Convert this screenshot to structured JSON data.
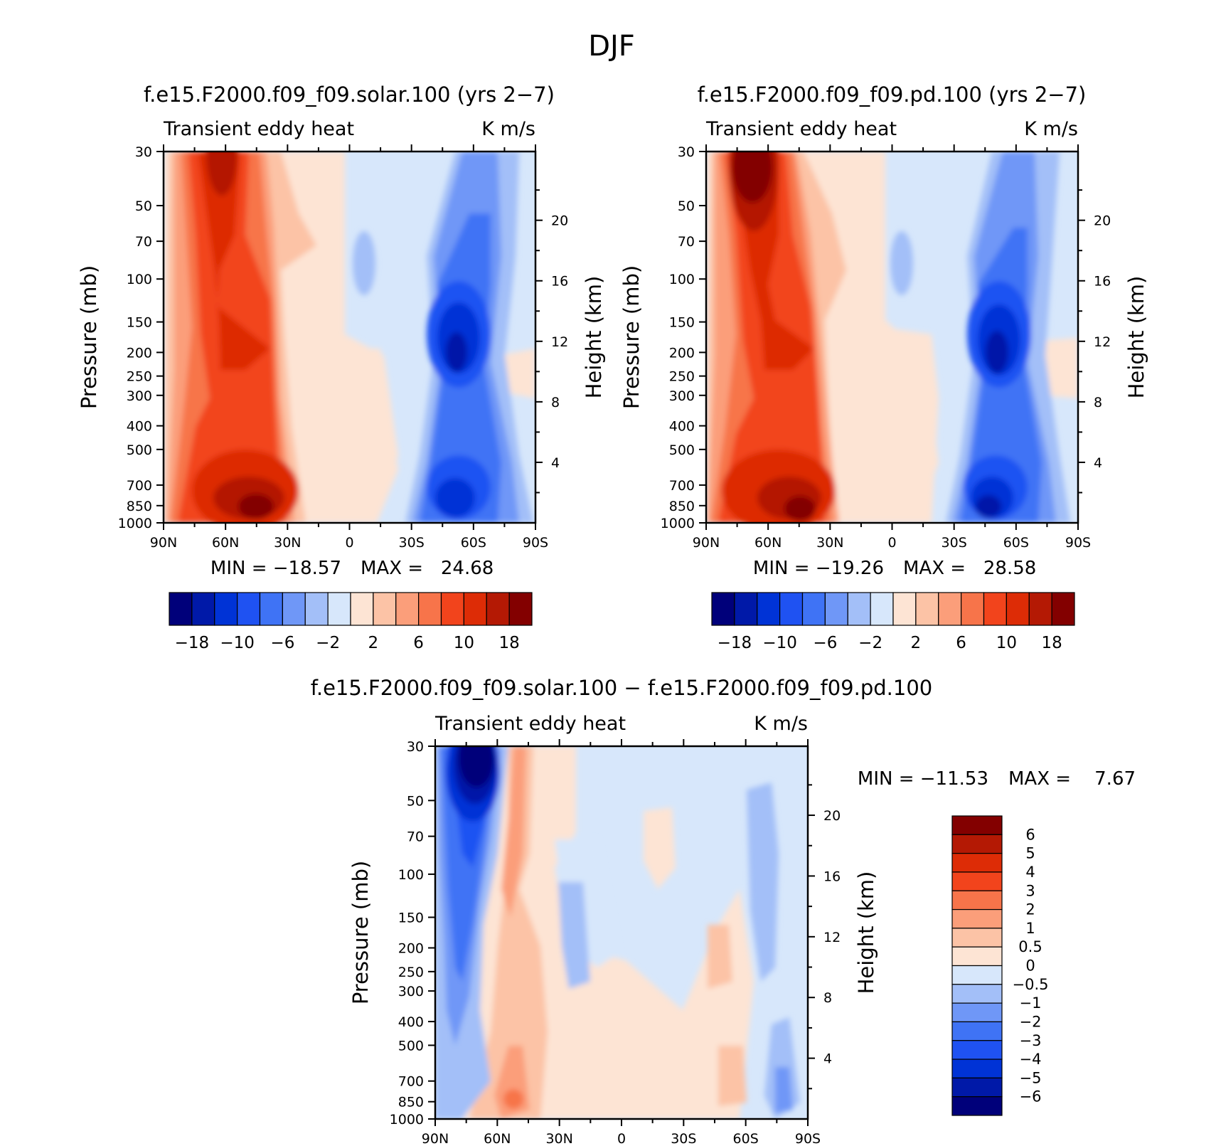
{
  "figure": {
    "title": "DJF",
    "domain": "Chart"
  },
  "colors": {
    "abs_scale": [
      "#00007a",
      "#0019a8",
      "#0033d6",
      "#1f52f2",
      "#3f73f5",
      "#6f97f7",
      "#a3bff8",
      "#d7e7fb",
      "#fde4d4",
      "#fcc3a6",
      "#fb9e7a",
      "#f7744a",
      "#f2441c",
      "#dd2c06",
      "#b41904",
      "#830000"
    ],
    "diff_scale": [
      "#00007a",
      "#0019a8",
      "#0033d6",
      "#1f52f2",
      "#3f73f5",
      "#6f97f7",
      "#a3bff8",
      "#d7e7fb",
      "#fde4d4",
      "#fcc3a6",
      "#fb9e7a",
      "#f7744a",
      "#f2441c",
      "#dd2c06",
      "#b41904",
      "#830000"
    ]
  },
  "chart_data": [
    {
      "type": "heatmap",
      "title": "f.e15.F2000.f09_f09.solar.100 (yrs 2−7)",
      "subtitle_left": "Transient eddy heat",
      "subtitle_right": "K m/s",
      "ylabel": "Pressure (mb)",
      "ylabel_right": "Height (km)",
      "x_ticks": [
        "90N",
        "60N",
        "30N",
        "0",
        "30S",
        "60S",
        "90S"
      ],
      "y_ticks": [
        "30",
        "50",
        "70",
        "100",
        "150",
        "200",
        "250",
        "300",
        "400",
        "500",
        "700",
        "850",
        "1000"
      ],
      "y_right_ticks": [
        "20",
        "16",
        "12",
        "8",
        "4"
      ],
      "ylim": [
        1000,
        30
      ],
      "min_label": "MIN = −18.57",
      "max_label": "MAX =   24.68",
      "min": -18.57,
      "max": 24.68,
      "colorbar_labels": [
        "−18",
        "−10",
        "−6",
        "−2",
        "2",
        "6",
        "10",
        "18"
      ],
      "features": [
        {
          "lat": 62,
          "p": 35,
          "value": 20
        },
        {
          "lat": 57,
          "p": 200,
          "value": 12
        },
        {
          "lat": 48,
          "p": 850,
          "value": 24
        },
        {
          "lat": -52,
          "p": 200,
          "value": -18
        },
        {
          "lat": -50,
          "p": 850,
          "value": -16
        }
      ]
    },
    {
      "type": "heatmap",
      "title": "f.e15.F2000.f09_f09.pd.100 (yrs 2−7)",
      "subtitle_left": "Transient eddy heat",
      "subtitle_right": "K m/s",
      "ylabel": "Pressure (mb)",
      "ylabel_right": "Height (km)",
      "x_ticks": [
        "90N",
        "60N",
        "30N",
        "0",
        "30S",
        "60S",
        "90S"
      ],
      "y_ticks": [
        "30",
        "50",
        "70",
        "100",
        "150",
        "200",
        "250",
        "300",
        "400",
        "500",
        "700",
        "850",
        "1000"
      ],
      "y_right_ticks": [
        "20",
        "16",
        "12",
        "8",
        "4"
      ],
      "ylim": [
        1000,
        30
      ],
      "min_label": "MIN = −19.26",
      "max_label": "MAX =   28.58",
      "min": -19.26,
      "max": 28.58,
      "colorbar_labels": [
        "−18",
        "−10",
        "−6",
        "−2",
        "2",
        "6",
        "10",
        "18"
      ],
      "features": [
        {
          "lat": 64,
          "p": 35,
          "value": 26
        },
        {
          "lat": 55,
          "p": 200,
          "value": 14
        },
        {
          "lat": 45,
          "p": 850,
          "value": 26
        },
        {
          "lat": -52,
          "p": 200,
          "value": -19
        },
        {
          "lat": -50,
          "p": 850,
          "value": -17
        }
      ]
    },
    {
      "type": "heatmap",
      "title": "f.e15.F2000.f09_f09.solar.100 − f.e15.F2000.f09_f09.pd.100",
      "subtitle_left": "Transient eddy heat",
      "subtitle_right": "K m/s",
      "ylabel": "Pressure (mb)",
      "ylabel_right": "Height (km)",
      "x_ticks": [
        "90N",
        "60N",
        "30N",
        "0",
        "30S",
        "60S",
        "90S"
      ],
      "y_ticks": [
        "30",
        "50",
        "70",
        "100",
        "150",
        "200",
        "250",
        "300",
        "400",
        "500",
        "700",
        "850",
        "1000"
      ],
      "y_right_ticks": [
        "20",
        "16",
        "12",
        "8",
        "4"
      ],
      "ylim": [
        1000,
        30
      ],
      "min_label": "MIN = −11.53",
      "max_label": "MAX =    7.67",
      "min": -11.53,
      "max": 7.67,
      "colorbar_labels": [
        "6",
        "5",
        "4",
        "3",
        "2",
        "1",
        "0.5",
        "0",
        "−0.5",
        "−1",
        "−2",
        "−3",
        "−4",
        "−5",
        "−6"
      ],
      "features": [
        {
          "lat": 70,
          "p": 40,
          "value": -11
        },
        {
          "lat": 50,
          "p": 850,
          "value": 4
        },
        {
          "lat": -65,
          "p": 60,
          "value": -1
        },
        {
          "lat": -52,
          "p": 700,
          "value": 1
        }
      ]
    }
  ]
}
